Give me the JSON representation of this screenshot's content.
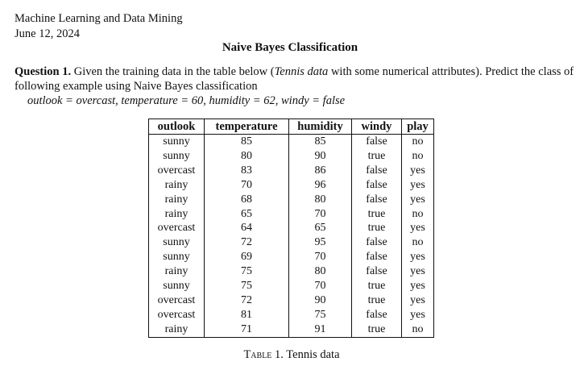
{
  "header": {
    "course": "Machine Learning and Data Mining",
    "date": "June 12, 2024"
  },
  "title": "Naive Bayes Classification",
  "question": {
    "label": "Question 1.",
    "text_before": "Given the training data in the table below (",
    "text_italic": "Tennis data",
    "text_after": " with some numerical attributes). Predict the class of following example using Naive Bayes classification",
    "example": "outlook = overcast, temperature = 60, humidity = 62, windy = false"
  },
  "table": {
    "headers": [
      "outlook",
      "temperature",
      "humidity",
      "windy",
      "play"
    ],
    "rows": [
      [
        "sunny",
        "85",
        "85",
        "false",
        "no"
      ],
      [
        "sunny",
        "80",
        "90",
        "true",
        "no"
      ],
      [
        "overcast",
        "83",
        "86",
        "false",
        "yes"
      ],
      [
        "rainy",
        "70",
        "96",
        "false",
        "yes"
      ],
      [
        "rainy",
        "68",
        "80",
        "false",
        "yes"
      ],
      [
        "rainy",
        "65",
        "70",
        "true",
        "no"
      ],
      [
        "overcast",
        "64",
        "65",
        "true",
        "yes"
      ],
      [
        "sunny",
        "72",
        "95",
        "false",
        "no"
      ],
      [
        "sunny",
        "69",
        "70",
        "false",
        "yes"
      ],
      [
        "rainy",
        "75",
        "80",
        "false",
        "yes"
      ],
      [
        "sunny",
        "75",
        "70",
        "true",
        "yes"
      ],
      [
        "overcast",
        "72",
        "90",
        "true",
        "yes"
      ],
      [
        "overcast",
        "81",
        "75",
        "false",
        "yes"
      ],
      [
        "rainy",
        "71",
        "91",
        "true",
        "no"
      ]
    ]
  },
  "caption": {
    "label": "Table 1.",
    "text": "Tennis data"
  }
}
